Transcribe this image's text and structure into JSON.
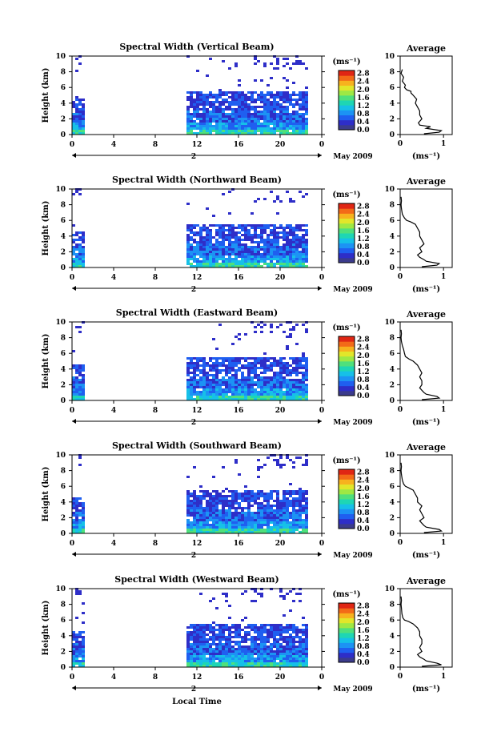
{
  "chart_data": [
    {
      "type": "heatmap",
      "title": "Spectral Width (Vertical Beam)",
      "xlabel": "",
      "ylabel": "Height (km)",
      "x_ticks": [
        "0",
        "4",
        "8",
        "12",
        "16",
        "20",
        "0"
      ],
      "y_ticks": [
        "0",
        "2",
        "4",
        "6",
        "8",
        "10"
      ],
      "day_label": "2",
      "date_label": "May 2009",
      "colorbar_unit": "(ms⁻¹)",
      "colorbar_ticks": [
        "0.0",
        "0.4",
        "0.8",
        "1.2",
        "1.6",
        "2.0",
        "2.4",
        "2.8"
      ],
      "data_segments": [
        {
          "start": 0,
          "end": 1.1,
          "top_km": 4.5,
          "sparse_to_km": 10
        },
        {
          "start": 11,
          "end": 22.5,
          "top_km": 5.5,
          "sparse_to_km": 10
        }
      ],
      "average_profile": {
        "title": "Average",
        "xlabel": "(ms⁻¹)",
        "x_ticks": [
          "0",
          "1"
        ],
        "y_ticks": [
          "0",
          "2",
          "4",
          "6",
          "8",
          "10"
        ],
        "height_km": [
          0.1,
          0.3,
          0.5,
          0.8,
          1.0,
          1.2,
          1.5,
          2.0,
          2.5,
          3.0,
          3.5,
          4.0,
          4.5,
          5.0,
          5.3,
          5.5,
          5.7,
          6.0,
          6.3,
          6.8,
          7.3,
          7.8,
          8.3
        ],
        "width_ms": [
          0.55,
          0.9,
          0.95,
          0.6,
          0.7,
          0.45,
          0.42,
          0.5,
          0.45,
          0.45,
          0.4,
          0.35,
          0.38,
          0.3,
          0.25,
          0.25,
          0.15,
          0.1,
          0.12,
          0.05,
          0.08,
          0.02,
          0.05
        ]
      }
    },
    {
      "type": "heatmap",
      "title": "Spectral Width (Northward Beam)",
      "xlabel": "",
      "ylabel": "Height (km)",
      "x_ticks": [
        "0",
        "4",
        "8",
        "12",
        "16",
        "20",
        "0"
      ],
      "y_ticks": [
        "0",
        "2",
        "4",
        "6",
        "8",
        "10"
      ],
      "day_label": "2",
      "date_label": "May 2009",
      "colorbar_unit": "(ms⁻¹)",
      "colorbar_ticks": [
        "0.0",
        "0.4",
        "0.8",
        "1.2",
        "1.6",
        "2.0",
        "2.4",
        "2.8"
      ],
      "data_segments": [
        {
          "start": 0,
          "end": 1.1,
          "top_km": 4.5,
          "sparse_to_km": 10
        },
        {
          "start": 11,
          "end": 22.5,
          "top_km": 5.5,
          "sparse_to_km": 10
        }
      ],
      "average_profile": {
        "title": "Average",
        "xlabel": "(ms⁻¹)",
        "x_ticks": [
          "0",
          "1"
        ],
        "y_ticks": [
          "0",
          "2",
          "4",
          "6",
          "8",
          "10"
        ],
        "height_km": [
          0.1,
          0.3,
          0.5,
          0.8,
          1.0,
          1.3,
          1.6,
          2.0,
          2.5,
          3.0,
          3.5,
          4.0,
          4.5,
          5.0,
          5.5,
          5.8,
          6.0,
          6.3,
          6.8,
          7.5,
          8.0,
          8.5,
          9.0
        ],
        "width_ms": [
          0.5,
          0.85,
          0.9,
          0.6,
          0.55,
          0.45,
          0.4,
          0.5,
          0.45,
          0.55,
          0.5,
          0.45,
          0.45,
          0.4,
          0.35,
          0.25,
          0.15,
          0.1,
          0.05,
          0.03,
          0.02,
          0.03,
          0.02
        ]
      }
    },
    {
      "type": "heatmap",
      "title": "Spectral Width (Eastward Beam)",
      "xlabel": "",
      "ylabel": "Height (km)",
      "x_ticks": [
        "0",
        "4",
        "8",
        "12",
        "16",
        "20",
        "0"
      ],
      "y_ticks": [
        "0",
        "2",
        "4",
        "6",
        "8",
        "10"
      ],
      "day_label": "2",
      "date_label": "May 2009",
      "colorbar_unit": "(ms⁻¹)",
      "colorbar_ticks": [
        "0.0",
        "0.4",
        "0.8",
        "1.2",
        "1.6",
        "2.0",
        "2.4",
        "2.8"
      ],
      "data_segments": [
        {
          "start": 0,
          "end": 1.1,
          "top_km": 4.5,
          "sparse_to_km": 10
        },
        {
          "start": 11,
          "end": 22.5,
          "top_km": 5.5,
          "sparse_to_km": 10
        }
      ],
      "average_profile": {
        "title": "Average",
        "xlabel": "(ms⁻¹)",
        "x_ticks": [
          "0",
          "1"
        ],
        "y_ticks": [
          "0",
          "2",
          "4",
          "6",
          "8",
          "10"
        ],
        "height_km": [
          0.1,
          0.3,
          0.5,
          0.8,
          1.0,
          1.3,
          1.6,
          2.0,
          2.5,
          3.0,
          3.5,
          4.0,
          4.5,
          5.0,
          5.3,
          5.6,
          6.0,
          6.5,
          7.0,
          7.5,
          8.0,
          8.5,
          9.0
        ],
        "width_ms": [
          0.5,
          0.9,
          0.85,
          0.6,
          0.55,
          0.5,
          0.45,
          0.5,
          0.5,
          0.45,
          0.5,
          0.45,
          0.4,
          0.3,
          0.2,
          0.12,
          0.1,
          0.08,
          0.05,
          0.03,
          0.02,
          0.03,
          0.02
        ]
      }
    },
    {
      "type": "heatmap",
      "title": "Spectral Width (Southward Beam)",
      "xlabel": "",
      "ylabel": "Height (km)",
      "x_ticks": [
        "0",
        "4",
        "8",
        "12",
        "16",
        "20",
        "0"
      ],
      "y_ticks": [
        "0",
        "2",
        "4",
        "6",
        "8",
        "10"
      ],
      "day_label": "2",
      "date_label": "May 2009",
      "colorbar_unit": "(ms⁻¹)",
      "colorbar_ticks": [
        "0.0",
        "0.4",
        "0.8",
        "1.2",
        "1.6",
        "2.0",
        "2.4",
        "2.8"
      ],
      "data_segments": [
        {
          "start": 0,
          "end": 1.1,
          "top_km": 4.5,
          "sparse_to_km": 10
        },
        {
          "start": 11,
          "end": 22.5,
          "top_km": 5.5,
          "sparse_to_km": 10
        }
      ],
      "average_profile": {
        "title": "Average",
        "xlabel": "(ms⁻¹)",
        "x_ticks": [
          "0",
          "1"
        ],
        "y_ticks": [
          "0",
          "2",
          "4",
          "6",
          "8",
          "10"
        ],
        "height_km": [
          0.1,
          0.3,
          0.5,
          0.8,
          1.0,
          1.3,
          1.6,
          2.0,
          2.5,
          3.0,
          3.5,
          4.0,
          4.5,
          5.0,
          5.5,
          5.8,
          6.0,
          6.3,
          6.8,
          7.5,
          8.0,
          8.5,
          9.0
        ],
        "width_ms": [
          0.55,
          0.95,
          0.9,
          0.6,
          0.55,
          0.5,
          0.45,
          0.55,
          0.5,
          0.45,
          0.5,
          0.4,
          0.4,
          0.35,
          0.3,
          0.2,
          0.12,
          0.08,
          0.05,
          0.03,
          0.02,
          0.03,
          0.02
        ]
      }
    },
    {
      "type": "heatmap",
      "title": "Spectral Width (Westward Beam)",
      "xlabel": "Local Time",
      "ylabel": "Height (km)",
      "x_ticks": [
        "0",
        "4",
        "8",
        "12",
        "16",
        "20",
        "0"
      ],
      "y_ticks": [
        "0",
        "2",
        "4",
        "6",
        "8",
        "10"
      ],
      "day_label": "2",
      "date_label": "May 2009",
      "colorbar_unit": "(ms⁻¹)",
      "colorbar_ticks": [
        "0.0",
        "0.4",
        "0.8",
        "1.2",
        "1.6",
        "2.0",
        "2.4",
        "2.8"
      ],
      "data_segments": [
        {
          "start": 0,
          "end": 1.1,
          "top_km": 4.5,
          "sparse_to_km": 10
        },
        {
          "start": 11,
          "end": 22.5,
          "top_km": 5.5,
          "sparse_to_km": 10
        }
      ],
      "average_profile": {
        "title": "Average",
        "xlabel": "(ms⁻¹)",
        "x_ticks": [
          "0",
          "1"
        ],
        "y_ticks": [
          "0",
          "2",
          "4",
          "6",
          "8",
          "10"
        ],
        "height_km": [
          0.1,
          0.3,
          0.5,
          0.8,
          1.0,
          1.3,
          1.6,
          2.0,
          2.5,
          3.0,
          3.5,
          4.0,
          4.5,
          5.0,
          5.5,
          5.8,
          6.0,
          6.3,
          6.8,
          7.5,
          8.0,
          8.5,
          9.0
        ],
        "width_ms": [
          0.5,
          0.95,
          0.85,
          0.6,
          0.55,
          0.45,
          0.4,
          0.5,
          0.45,
          0.5,
          0.5,
          0.45,
          0.45,
          0.4,
          0.3,
          0.2,
          0.1,
          0.06,
          0.04,
          0.03,
          0.02,
          0.03,
          0.02
        ]
      }
    }
  ],
  "colors": {
    "colorbar": [
      "#3b3b8c",
      "#2e2ec8",
      "#1f5ff0",
      "#1c93f4",
      "#16c0e8",
      "#1ed6b4",
      "#4fe07c",
      "#9ee844",
      "#e2e62a",
      "#f7b21e",
      "#f36a18",
      "#e02614"
    ]
  }
}
